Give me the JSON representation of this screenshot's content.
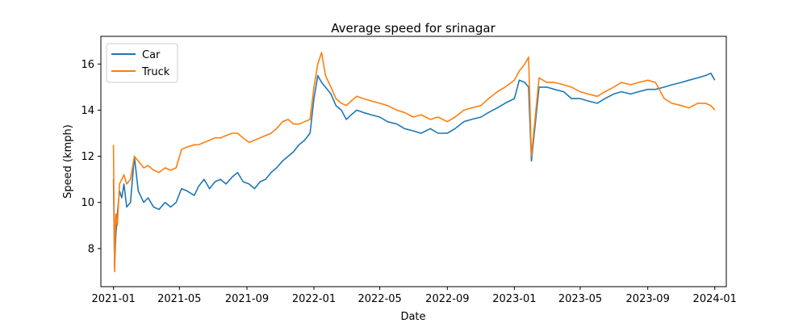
{
  "chart_data": {
    "type": "line",
    "title": "Average speed for srinagar",
    "xlabel": "Date",
    "ylabel": "Speed (kmph)",
    "xlim": [
      "2020-12-09",
      "2024-01-22"
    ],
    "ylim": [
      6.35,
      17.2
    ],
    "x_ticks": [
      "2021-01",
      "2021-05",
      "2021-09",
      "2022-01",
      "2022-05",
      "2022-09",
      "2023-01",
      "2023-05",
      "2023-09",
      "2024-01"
    ],
    "x_tick_dates": [
      "2021-01-01",
      "2021-05-01",
      "2021-09-01",
      "2022-01-01",
      "2022-05-01",
      "2022-09-01",
      "2023-01-01",
      "2023-05-01",
      "2023-09-01",
      "2024-01-01"
    ],
    "y_ticks": [
      8,
      10,
      12,
      14,
      16
    ],
    "legend_position": "upper-left",
    "series": [
      {
        "name": "Car",
        "color": "#1f77b4",
        "x": [
          "2021-01-01",
          "2021-01-03",
          "2021-01-05",
          "2021-01-08",
          "2021-01-12",
          "2021-01-16",
          "2021-01-20",
          "2021-01-25",
          "2021-02-01",
          "2021-02-08",
          "2021-02-15",
          "2021-02-25",
          "2021-03-05",
          "2021-03-15",
          "2021-03-25",
          "2021-04-05",
          "2021-04-15",
          "2021-04-25",
          "2021-05-05",
          "2021-05-15",
          "2021-05-28",
          "2021-06-05",
          "2021-06-15",
          "2021-06-25",
          "2021-07-05",
          "2021-07-15",
          "2021-07-25",
          "2021-08-05",
          "2021-08-15",
          "2021-08-25",
          "2021-09-05",
          "2021-09-15",
          "2021-09-25",
          "2021-10-05",
          "2021-10-15",
          "2021-10-25",
          "2021-11-05",
          "2021-11-15",
          "2021-11-25",
          "2021-12-05",
          "2021-12-15",
          "2021-12-25",
          "2022-01-01",
          "2022-01-08",
          "2022-01-15",
          "2022-01-22",
          "2022-02-01",
          "2022-02-10",
          "2022-02-20",
          "2022-03-01",
          "2022-03-10",
          "2022-03-20",
          "2022-04-01",
          "2022-04-15",
          "2022-05-01",
          "2022-05-15",
          "2022-06-01",
          "2022-06-15",
          "2022-07-01",
          "2022-07-15",
          "2022-08-01",
          "2022-08-15",
          "2022-09-01",
          "2022-09-15",
          "2022-10-01",
          "2022-10-15",
          "2022-11-01",
          "2022-11-15",
          "2022-12-01",
          "2022-12-15",
          "2023-01-01",
          "2023-01-10",
          "2023-01-20",
          "2023-01-27",
          "2023-02-01",
          "2023-02-15",
          "2023-03-01",
          "2023-03-15",
          "2023-04-01",
          "2023-04-15",
          "2023-05-01",
          "2023-05-15",
          "2023-06-01",
          "2023-06-15",
          "2023-07-01",
          "2023-07-15",
          "2023-08-01",
          "2023-08-15",
          "2023-09-01",
          "2023-09-15",
          "2023-10-01",
          "2023-10-15",
          "2023-11-01",
          "2023-11-15",
          "2023-12-01",
          "2023-12-15",
          "2023-12-25",
          "2024-01-01"
        ],
        "values": [
          11.0,
          7.2,
          8.5,
          9.5,
          10.5,
          10.2,
          10.8,
          9.8,
          10.0,
          12.0,
          10.5,
          10.0,
          10.2,
          9.8,
          9.7,
          10.0,
          9.8,
          10.0,
          10.6,
          10.5,
          10.3,
          10.7,
          11.0,
          10.6,
          10.9,
          11.0,
          10.8,
          11.1,
          11.3,
          10.9,
          10.8,
          10.6,
          10.9,
          11.0,
          11.3,
          11.5,
          11.8,
          12.0,
          12.2,
          12.5,
          12.7,
          13.0,
          14.5,
          15.5,
          15.2,
          15.0,
          14.7,
          14.2,
          14.0,
          13.6,
          13.8,
          14.0,
          13.9,
          13.8,
          13.7,
          13.5,
          13.4,
          13.2,
          13.1,
          13.0,
          13.2,
          13.0,
          13.0,
          13.2,
          13.5,
          13.6,
          13.7,
          13.9,
          14.1,
          14.3,
          14.5,
          15.3,
          15.2,
          15.0,
          11.8,
          15.0,
          15.0,
          14.9,
          14.8,
          14.5,
          14.5,
          14.4,
          14.3,
          14.5,
          14.7,
          14.8,
          14.7,
          14.8,
          14.9,
          14.9,
          15.0,
          15.1,
          15.2,
          15.3,
          15.4,
          15.5,
          15.6,
          15.3
        ]
      },
      {
        "name": "Truck",
        "color": "#ff7f0e",
        "x": [
          "2021-01-01",
          "2021-01-03",
          "2021-01-05",
          "2021-01-08",
          "2021-01-12",
          "2021-01-16",
          "2021-01-20",
          "2021-01-25",
          "2021-02-01",
          "2021-02-08",
          "2021-02-15",
          "2021-02-25",
          "2021-03-05",
          "2021-03-15",
          "2021-03-25",
          "2021-04-05",
          "2021-04-15",
          "2021-04-25",
          "2021-05-05",
          "2021-05-15",
          "2021-05-28",
          "2021-06-05",
          "2021-06-15",
          "2021-06-25",
          "2021-07-05",
          "2021-07-15",
          "2021-07-25",
          "2021-08-05",
          "2021-08-15",
          "2021-08-25",
          "2021-09-05",
          "2021-09-15",
          "2021-09-25",
          "2021-10-05",
          "2021-10-15",
          "2021-10-25",
          "2021-11-05",
          "2021-11-15",
          "2021-11-25",
          "2021-12-05",
          "2021-12-15",
          "2021-12-25",
          "2022-01-01",
          "2022-01-08",
          "2022-01-15",
          "2022-01-22",
          "2022-02-01",
          "2022-02-10",
          "2022-02-20",
          "2022-03-01",
          "2022-03-10",
          "2022-03-20",
          "2022-04-01",
          "2022-04-15",
          "2022-05-01",
          "2022-05-15",
          "2022-06-01",
          "2022-06-15",
          "2022-07-01",
          "2022-07-15",
          "2022-08-01",
          "2022-08-15",
          "2022-09-01",
          "2022-09-15",
          "2022-10-01",
          "2022-10-15",
          "2022-11-01",
          "2022-11-15",
          "2022-12-01",
          "2022-12-15",
          "2023-01-01",
          "2023-01-10",
          "2023-01-20",
          "2023-01-27",
          "2023-02-01",
          "2023-02-15",
          "2023-03-01",
          "2023-03-15",
          "2023-04-01",
          "2023-04-15",
          "2023-05-01",
          "2023-05-15",
          "2023-06-01",
          "2023-06-15",
          "2023-07-01",
          "2023-07-15",
          "2023-08-01",
          "2023-08-15",
          "2023-09-01",
          "2023-09-15",
          "2023-10-01",
          "2023-10-15",
          "2023-11-01",
          "2023-11-15",
          "2023-12-01",
          "2023-12-15",
          "2023-12-25",
          "2024-01-01"
        ],
        "values": [
          12.5,
          7.0,
          9.5,
          9.0,
          10.8,
          11.0,
          11.2,
          10.8,
          11.0,
          12.0,
          11.8,
          11.5,
          11.6,
          11.4,
          11.3,
          11.5,
          11.4,
          11.5,
          12.3,
          12.4,
          12.5,
          12.5,
          12.6,
          12.7,
          12.8,
          12.8,
          12.9,
          13.0,
          13.0,
          12.8,
          12.6,
          12.7,
          12.8,
          12.9,
          13.0,
          13.2,
          13.5,
          13.6,
          13.4,
          13.4,
          13.5,
          13.6,
          15.0,
          16.0,
          16.5,
          15.5,
          15.0,
          14.5,
          14.3,
          14.2,
          14.4,
          14.6,
          14.5,
          14.4,
          14.3,
          14.2,
          14.0,
          13.9,
          13.7,
          13.8,
          13.6,
          13.7,
          13.5,
          13.7,
          14.0,
          14.1,
          14.2,
          14.5,
          14.8,
          15.0,
          15.3,
          15.7,
          16.0,
          16.3,
          12.0,
          15.4,
          15.2,
          15.2,
          15.1,
          15.0,
          14.8,
          14.7,
          14.6,
          14.8,
          15.0,
          15.2,
          15.1,
          15.2,
          15.3,
          15.2,
          14.5,
          14.3,
          14.2,
          14.1,
          14.3,
          14.3,
          14.2,
          14.0
        ]
      }
    ]
  }
}
